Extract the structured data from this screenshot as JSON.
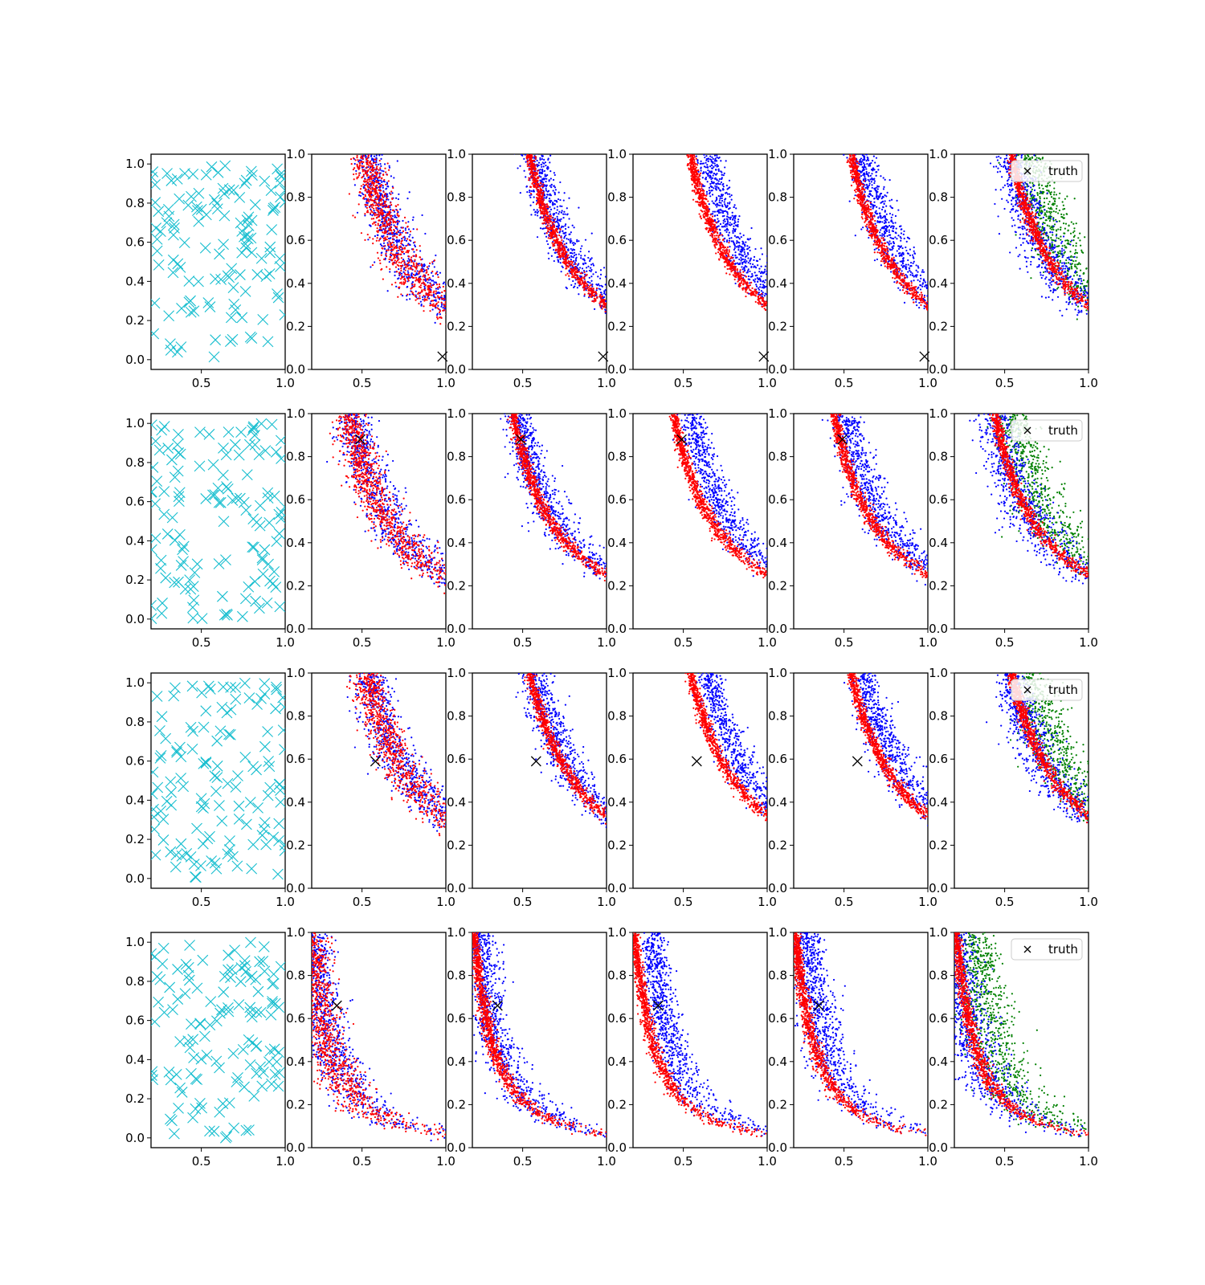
{
  "chart_data": {
    "type": "scatter",
    "layout": {
      "rows": 4,
      "cols": 6
    },
    "rows": [
      {
        "truth": [
          0.98,
          0.06
        ],
        "wide_mode": false,
        "curve": {
          "a": 0.55,
          "b": 1.0,
          "p": 2.0
        }
      },
      {
        "truth": [
          0.49,
          0.88
        ],
        "wide_mode": true,
        "curve": {
          "a": 0.45,
          "b": 1.0,
          "p": 1.7
        }
      },
      {
        "truth": [
          0.58,
          0.59
        ],
        "wide_mode": true,
        "curve": {
          "a": 0.55,
          "b": 1.0,
          "p": 1.8
        }
      },
      {
        "truth": [
          0.35,
          0.66
        ],
        "wide_mode": true,
        "curve": {
          "a": 0.28,
          "b": 0.78,
          "p": 1.8
        }
      }
    ],
    "first_column": {
      "type": "scatter",
      "marker": "x",
      "color": "#17becf",
      "xlim": [
        0.2,
        1.0
      ],
      "ylim": [
        -0.05,
        1.05
      ],
      "xticks": [
        "0.5",
        "1.0"
      ],
      "yticks": [
        "0.0",
        "0.2",
        "0.4",
        "0.6",
        "0.8",
        "1.0"
      ]
    },
    "posterior_columns": {
      "type": "scatter",
      "xlim": [
        0.2,
        1.0
      ],
      "ylim": [
        0.0,
        1.0
      ],
      "xticks": [
        "0.5",
        "1.0"
      ],
      "yticks": [
        "0.0",
        "0.2",
        "0.4",
        "0.6",
        "0.8",
        "1.0"
      ],
      "series": [
        {
          "color": "#0000ff",
          "marker": "."
        },
        {
          "color": "#ff0000",
          "marker": "."
        },
        {
          "color": "#008000",
          "marker": ".",
          "only_last_column": true
        }
      ]
    },
    "legend": {
      "label": "truth",
      "marker": "x",
      "color": "#000000",
      "placement": "top-right"
    },
    "grid": false
  }
}
